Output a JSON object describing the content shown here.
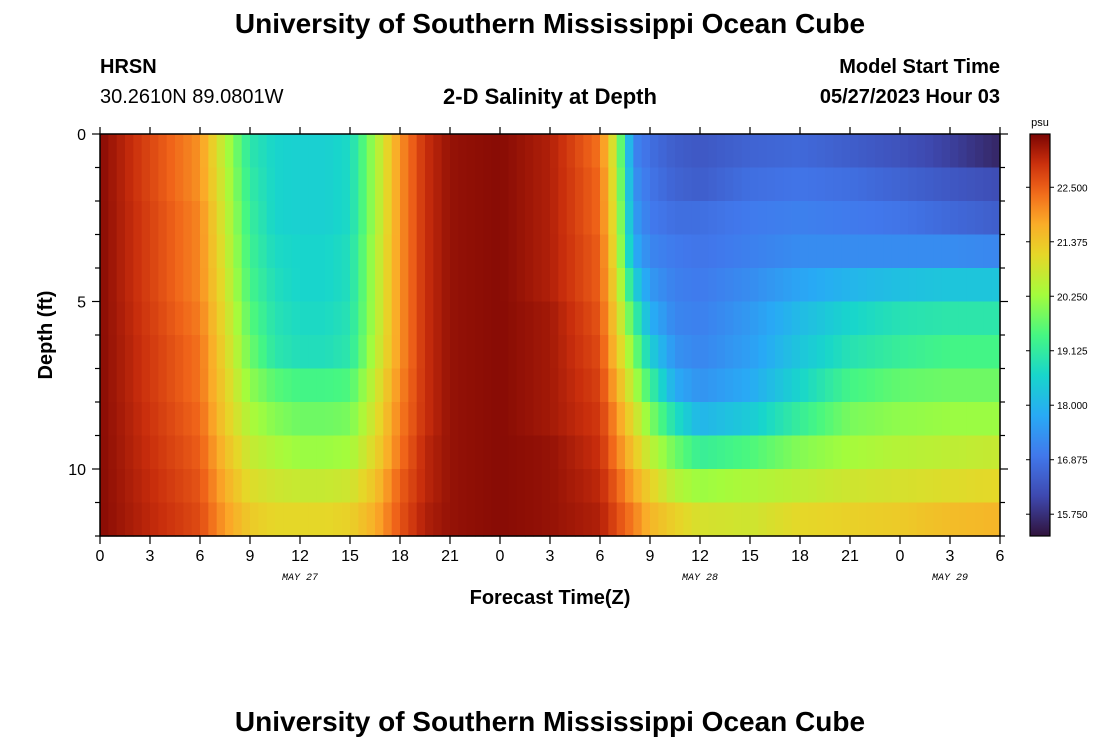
{
  "header": {
    "title": "University of Southern Mississippi Ocean Cube",
    "station": "HRSN",
    "coordinates": "30.2610N  89.0801W",
    "subtitle": "2-D Salinity at Depth",
    "model_start_label": "Model Start Time",
    "model_start_value": "05/27/2023 Hour 03"
  },
  "footer": {
    "title": "University of Southern Mississippi Ocean Cube"
  },
  "chart_data": {
    "type": "heatmap",
    "title": "2-D Salinity at Depth",
    "xlabel": "Forecast Time(Z)",
    "ylabel": "Depth (ft)",
    "x_unit": "hours since 05/27 00Z",
    "xlim": [
      0,
      54
    ],
    "ylim": [
      0,
      12
    ],
    "x_ticks": [
      {
        "value": 0,
        "label": "0"
      },
      {
        "value": 3,
        "label": "3"
      },
      {
        "value": 6,
        "label": "6"
      },
      {
        "value": 9,
        "label": "9"
      },
      {
        "value": 12,
        "label": "12"
      },
      {
        "value": 15,
        "label": "15"
      },
      {
        "value": 18,
        "label": "18"
      },
      {
        "value": 21,
        "label": "21"
      },
      {
        "value": 24,
        "label": "0"
      },
      {
        "value": 27,
        "label": "3"
      },
      {
        "value": 30,
        "label": "6"
      },
      {
        "value": 33,
        "label": "9"
      },
      {
        "value": 36,
        "label": "12"
      },
      {
        "value": 39,
        "label": "15"
      },
      {
        "value": 42,
        "label": "18"
      },
      {
        "value": 45,
        "label": "21"
      },
      {
        "value": 48,
        "label": "0"
      },
      {
        "value": 51,
        "label": "3"
      },
      {
        "value": 54,
        "label": "6"
      }
    ],
    "date_labels": [
      {
        "value": 12,
        "label": "MAY 27"
      },
      {
        "value": 36,
        "label": "MAY 28"
      },
      {
        "value": 51,
        "label": "MAY 29"
      }
    ],
    "y_ticks": [
      {
        "value": 0,
        "label": "0"
      },
      {
        "value": 5,
        "label": "5"
      },
      {
        "value": 10,
        "label": "10"
      }
    ],
    "y_minor_step": 1,
    "colorbar": {
      "unit": "psu",
      "min": 15.3,
      "max": 23.6,
      "ticks": [
        "15.750",
        "16.875",
        "18.000",
        "19.125",
        "20.250",
        "21.375",
        "22.500"
      ]
    },
    "depths_ft": [
      0.5,
      1.5,
      2.5,
      3.5,
      4.5,
      5.5,
      6.5,
      7.5,
      8.5,
      9.5,
      10.5,
      11.5
    ],
    "hours": [
      0,
      6,
      7.5,
      9,
      10.5,
      12,
      13.5,
      15,
      16.5,
      18,
      19.5,
      21,
      24,
      27,
      30,
      31,
      32,
      33,
      34.5,
      36,
      39,
      42,
      45,
      48,
      51,
      54
    ],
    "salinity": [
      [
        23.5,
        22.0,
        20.5,
        19.0,
        18.6,
        18.5,
        18.5,
        18.7,
        20.3,
        22.0,
        23.0,
        23.4,
        23.5,
        23.2,
        22.3,
        20.5,
        17.2,
        16.8,
        16.5,
        16.4,
        16.6,
        16.7,
        16.5,
        16.3,
        16.0,
        15.6
      ],
      [
        23.5,
        22.0,
        20.6,
        19.1,
        18.6,
        18.5,
        18.5,
        18.7,
        20.3,
        22.0,
        23.0,
        23.4,
        23.5,
        23.2,
        22.4,
        20.6,
        17.4,
        16.9,
        16.6,
        16.5,
        16.8,
        16.9,
        16.8,
        16.6,
        16.4,
        16.2
      ],
      [
        23.5,
        22.1,
        20.7,
        19.2,
        18.6,
        18.5,
        18.5,
        18.7,
        20.3,
        22.0,
        23.0,
        23.4,
        23.5,
        23.2,
        22.4,
        20.7,
        17.6,
        17.0,
        16.8,
        16.8,
        17.0,
        17.1,
        17.0,
        16.9,
        16.7,
        16.5
      ],
      [
        23.5,
        22.1,
        20.8,
        19.3,
        18.7,
        18.6,
        18.6,
        18.8,
        20.4,
        22.0,
        23.0,
        23.4,
        23.5,
        23.2,
        22.5,
        20.8,
        17.9,
        17.2,
        17.0,
        16.9,
        17.1,
        17.3,
        17.3,
        17.3,
        17.3,
        17.2
      ],
      [
        23.5,
        22.1,
        20.9,
        19.4,
        18.8,
        18.6,
        18.6,
        18.8,
        20.4,
        22.0,
        23.0,
        23.4,
        23.5,
        23.2,
        22.5,
        21.0,
        18.6,
        17.5,
        17.1,
        17.0,
        17.3,
        17.7,
        18.0,
        18.2,
        18.3,
        18.3
      ],
      [
        23.5,
        22.2,
        21.0,
        19.6,
        18.9,
        18.7,
        18.7,
        18.9,
        20.4,
        22.0,
        23.0,
        23.4,
        23.5,
        23.3,
        22.6,
        21.2,
        19.4,
        17.9,
        17.2,
        17.1,
        17.5,
        18.1,
        18.6,
        18.9,
        19.0,
        19.0
      ],
      [
        23.5,
        22.3,
        21.1,
        19.8,
        19.0,
        18.8,
        18.8,
        19.0,
        20.5,
        22.0,
        23.0,
        23.4,
        23.5,
        23.3,
        22.7,
        21.4,
        20.0,
        18.5,
        17.4,
        17.2,
        17.6,
        18.3,
        18.9,
        19.2,
        19.4,
        19.4
      ],
      [
        23.5,
        22.3,
        21.2,
        20.1,
        19.6,
        19.4,
        19.4,
        19.5,
        20.7,
        22.1,
        23.0,
        23.4,
        23.5,
        23.3,
        22.8,
        21.7,
        20.5,
        19.3,
        17.8,
        17.4,
        17.8,
        18.6,
        19.4,
        19.7,
        19.8,
        19.8
      ],
      [
        23.5,
        22.4,
        21.3,
        20.4,
        20.0,
        19.8,
        19.8,
        19.9,
        20.9,
        22.2,
        23.0,
        23.4,
        23.5,
        23.3,
        22.9,
        22.0,
        21.0,
        20.0,
        18.8,
        18.0,
        18.4,
        19.2,
        19.9,
        20.1,
        20.2,
        20.2
      ],
      [
        23.5,
        22.5,
        21.5,
        20.7,
        20.4,
        20.2,
        20.2,
        20.3,
        21.1,
        22.3,
        23.1,
        23.4,
        23.5,
        23.4,
        23.0,
        22.2,
        21.4,
        20.6,
        19.8,
        19.2,
        19.5,
        20.0,
        20.3,
        20.5,
        20.6,
        20.7
      ],
      [
        23.5,
        22.6,
        21.7,
        21.0,
        20.8,
        20.7,
        20.7,
        20.8,
        21.4,
        22.5,
        23.1,
        23.4,
        23.5,
        23.4,
        23.1,
        22.5,
        21.8,
        21.2,
        20.5,
        20.2,
        20.4,
        20.6,
        20.8,
        20.9,
        21.0,
        21.1
      ],
      [
        23.5,
        22.7,
        21.9,
        21.3,
        21.1,
        21.1,
        21.1,
        21.2,
        21.7,
        22.6,
        23.2,
        23.4,
        23.5,
        23.4,
        23.2,
        22.7,
        22.2,
        21.6,
        21.2,
        20.9,
        20.8,
        21.1,
        21.2,
        21.3,
        21.5,
        21.6
      ]
    ]
  }
}
